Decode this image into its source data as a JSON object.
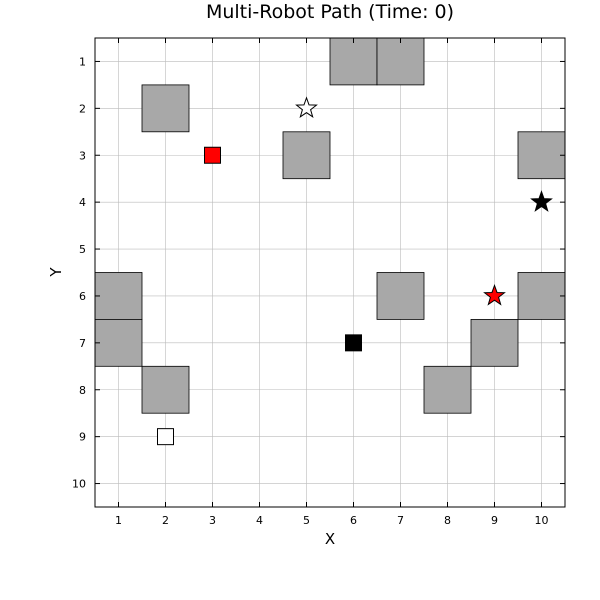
{
  "chart_data": {
    "type": "scatter",
    "title": "Multi-Robot Path (Time: 0)",
    "xlabel": "X",
    "ylabel": "Y",
    "xlim": [
      0.5,
      10.5
    ],
    "ylim": [
      0.5,
      10.5
    ],
    "y_inverted": true,
    "grid": true,
    "xticks": [
      "1",
      "2",
      "3",
      "4",
      "5",
      "6",
      "7",
      "8",
      "9",
      "10"
    ],
    "yticks": [
      "1",
      "2",
      "3",
      "4",
      "5",
      "6",
      "7",
      "8",
      "9",
      "10"
    ],
    "obstacles": [
      {
        "x": 6,
        "y": 1
      },
      {
        "x": 7,
        "y": 1
      },
      {
        "x": 2,
        "y": 2
      },
      {
        "x": 5,
        "y": 3
      },
      {
        "x": 10,
        "y": 3
      },
      {
        "x": 1,
        "y": 6
      },
      {
        "x": 7,
        "y": 6
      },
      {
        "x": 10,
        "y": 6
      },
      {
        "x": 1,
        "y": 7
      },
      {
        "x": 9,
        "y": 7
      },
      {
        "x": 2,
        "y": 8
      },
      {
        "x": 8,
        "y": 8
      }
    ],
    "robots": [
      {
        "x": 3,
        "y": 3,
        "color": "#ff0000"
      },
      {
        "x": 6,
        "y": 7,
        "color": "#000000"
      },
      {
        "x": 2,
        "y": 9,
        "color": "#ffffff"
      }
    ],
    "goals": [
      {
        "x": 5,
        "y": 2,
        "color": "#ffffff"
      },
      {
        "x": 10,
        "y": 4,
        "color": "#000000"
      },
      {
        "x": 9,
        "y": 6,
        "color": "#ff0000"
      }
    ],
    "colors": {
      "obstacle": "#a8a8a8",
      "grid": "#bbbbbb"
    }
  }
}
